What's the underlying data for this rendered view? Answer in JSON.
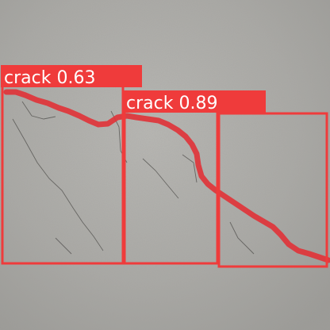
{
  "detections": [
    {
      "label": "crack 0.63",
      "class_name": "crack",
      "confidence": 0.63
    },
    {
      "label": "crack 0.89",
      "class_name": "crack",
      "confidence": 0.89
    },
    {
      "class_name": "crack"
    }
  ],
  "colors": {
    "box": "#ef3b3b",
    "mask": "#e0343a",
    "label_text": "#ffffff",
    "surface": "#a9a8a4"
  }
}
